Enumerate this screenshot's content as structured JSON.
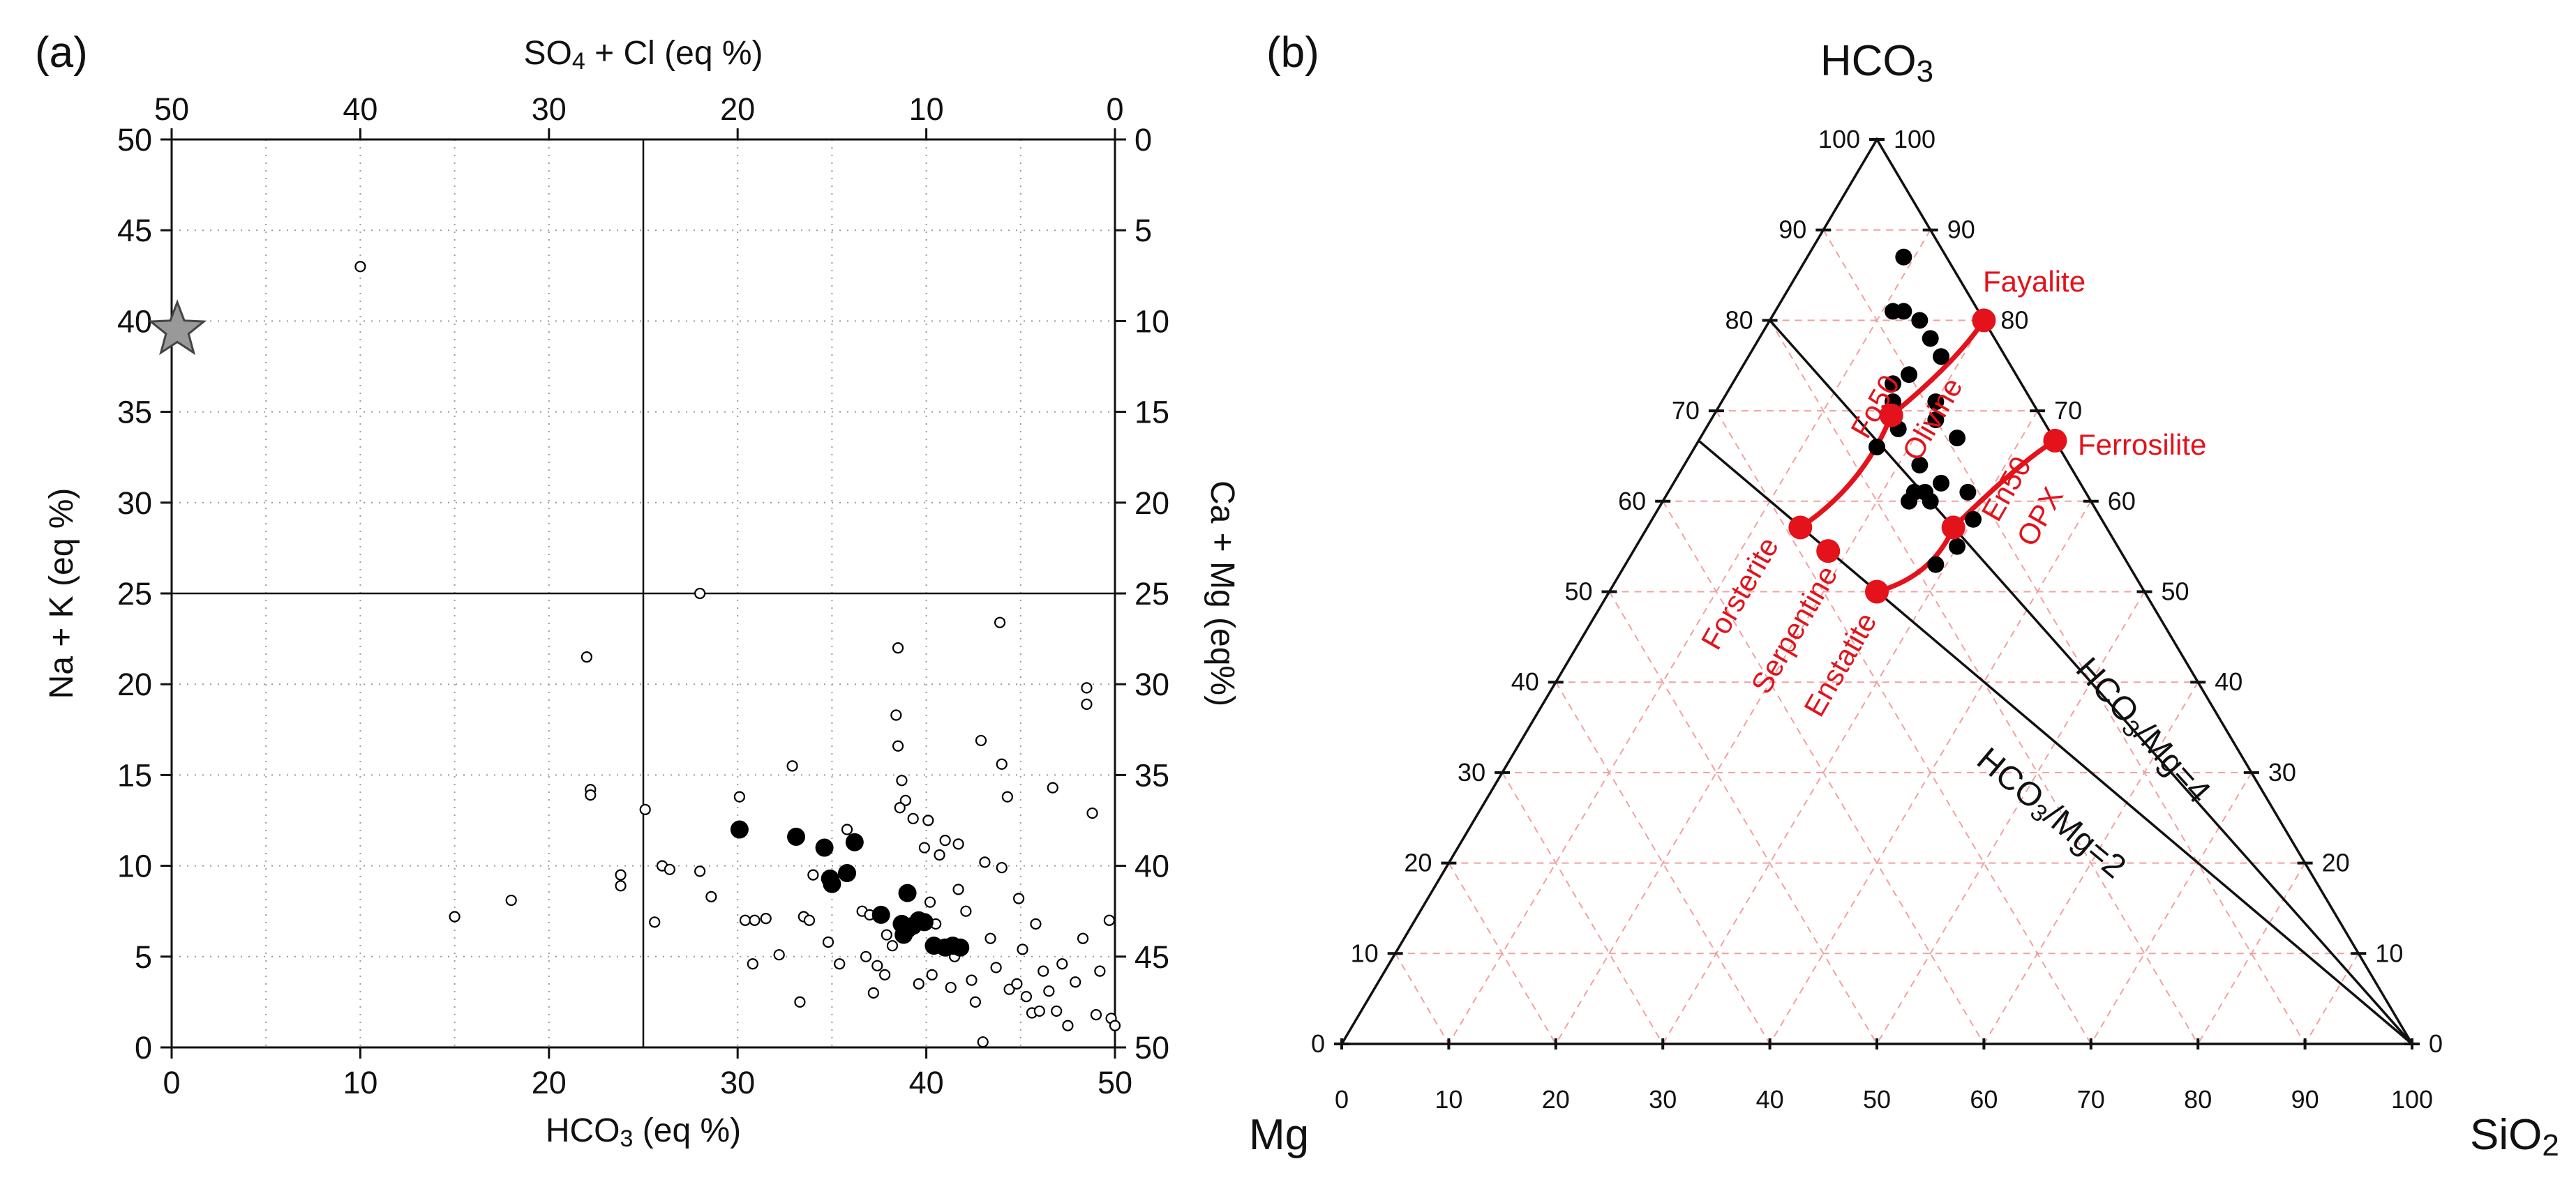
{
  "chart_data": [
    {
      "panel": "(a)",
      "type": "scatter",
      "xlabel": "HCO3 (eq %)",
      "x_axis_text": {
        "main": "HCO",
        "sub": "3",
        "rest": " (eq %)"
      },
      "ylabel": "Na + K (eq %)",
      "top_label": {
        "main": "SO",
        "sub": "4",
        "rest": " + Cl (eq %)"
      },
      "right_label": "Ca + Mg (eq%)",
      "xlim": [
        0,
        50
      ],
      "ylim": [
        0,
        50
      ],
      "x_ticks": [
        "0",
        "10",
        "20",
        "30",
        "40",
        "50"
      ],
      "y_ticks": [
        "0",
        "5",
        "10",
        "15",
        "20",
        "25",
        "30",
        "35",
        "40",
        "45",
        "50"
      ],
      "top_ticks": [
        "50",
        "40",
        "30",
        "20",
        "10",
        "0"
      ],
      "right_ticks": [
        "50",
        "45",
        "40",
        "35",
        "30",
        "25",
        "20",
        "15",
        "10",
        "5",
        "0"
      ],
      "grid": true,
      "dividers": {
        "x": 25,
        "y": 25
      },
      "star": {
        "x": 0.3,
        "y": 39.5,
        "color": "#999999"
      },
      "series": [
        {
          "marker": "filled",
          "color": "#000000",
          "points": [
            [
              30.1,
              12.0
            ],
            [
              33.1,
              11.6
            ],
            [
              34.6,
              11.0
            ],
            [
              36.2,
              11.3
            ],
            [
              35.8,
              9.6
            ],
            [
              34.9,
              9.3
            ],
            [
              35.0,
              9.0
            ],
            [
              37.6,
              7.3
            ],
            [
              38.7,
              6.8
            ],
            [
              39.0,
              6.5
            ],
            [
              39.3,
              6.7
            ],
            [
              39.6,
              7.0
            ],
            [
              39.9,
              6.9
            ],
            [
              38.8,
              6.2
            ],
            [
              39.0,
              8.5
            ],
            [
              40.4,
              5.6
            ],
            [
              41.0,
              5.5
            ],
            [
              41.4,
              5.6
            ],
            [
              41.8,
              5.5
            ]
          ]
        },
        {
          "marker": "open",
          "color": "#000000",
          "points": [
            [
              10.0,
              43.0
            ],
            [
              28.0,
              25.0
            ],
            [
              22.0,
              21.5
            ],
            [
              15.0,
              7.2
            ],
            [
              18.0,
              8.1
            ],
            [
              22.2,
              14.2
            ],
            [
              22.2,
              13.9
            ],
            [
              23.8,
              9.5
            ],
            [
              23.8,
              8.9
            ],
            [
              25.1,
              13.1
            ],
            [
              26.0,
              10.0
            ],
            [
              26.4,
              9.8
            ],
            [
              28.0,
              9.7
            ],
            [
              28.6,
              8.3
            ],
            [
              25.6,
              6.9
            ],
            [
              30.1,
              13.8
            ],
            [
              30.4,
              7.0
            ],
            [
              30.9,
              7.0
            ],
            [
              30.8,
              4.6
            ],
            [
              31.5,
              7.1
            ],
            [
              32.2,
              5.1
            ],
            [
              32.9,
              15.5
            ],
            [
              33.3,
              2.5
            ],
            [
              33.5,
              7.2
            ],
            [
              33.8,
              7.0
            ],
            [
              34.0,
              9.5
            ],
            [
              34.8,
              5.8
            ],
            [
              35.4,
              4.6
            ],
            [
              35.8,
              12.0
            ],
            [
              36.6,
              7.5
            ],
            [
              37.0,
              7.3
            ],
            [
              36.8,
              5.0
            ],
            [
              37.2,
              3.0
            ],
            [
              37.4,
              4.5
            ],
            [
              37.8,
              4.0
            ],
            [
              37.9,
              6.2
            ],
            [
              38.2,
              5.6
            ],
            [
              38.4,
              18.3
            ],
            [
              38.5,
              16.6
            ],
            [
              38.7,
              14.7
            ],
            [
              38.9,
              13.6
            ],
            [
              38.6,
              13.2
            ],
            [
              38.5,
              22.0
            ],
            [
              39.3,
              12.6
            ],
            [
              39.6,
              3.5
            ],
            [
              39.9,
              11.0
            ],
            [
              40.1,
              12.5
            ],
            [
              40.2,
              8.0
            ],
            [
              40.3,
              4.0
            ],
            [
              40.5,
              6.8
            ],
            [
              40.7,
              10.6
            ],
            [
              41.0,
              11.4
            ],
            [
              41.3,
              3.3
            ],
            [
              41.5,
              5.0
            ],
            [
              41.7,
              8.7
            ],
            [
              41.7,
              11.2
            ],
            [
              42.1,
              7.5
            ],
            [
              42.4,
              3.7
            ],
            [
              42.6,
              2.5
            ],
            [
              42.9,
              16.9
            ],
            [
              43.0,
              0.3
            ],
            [
              43.1,
              10.2
            ],
            [
              43.4,
              6.0
            ],
            [
              43.7,
              4.4
            ],
            [
              43.9,
              23.4
            ],
            [
              44.0,
              15.6
            ],
            [
              44.0,
              9.9
            ],
            [
              44.3,
              13.8
            ],
            [
              44.4,
              3.2
            ],
            [
              44.8,
              3.5
            ],
            [
              44.9,
              8.2
            ],
            [
              45.1,
              5.4
            ],
            [
              45.3,
              2.8
            ],
            [
              45.6,
              1.9
            ],
            [
              45.8,
              6.8
            ],
            [
              46.0,
              2.0
            ],
            [
              46.2,
              4.2
            ],
            [
              46.5,
              3.1
            ],
            [
              46.7,
              14.3
            ],
            [
              46.9,
              2.0
            ],
            [
              47.2,
              4.6
            ],
            [
              47.5,
              1.2
            ],
            [
              47.9,
              3.6
            ],
            [
              48.3,
              6.0
            ],
            [
              48.5,
              19.8
            ],
            [
              48.5,
              18.9
            ],
            [
              48.8,
              12.9
            ],
            [
              49.0,
              1.8
            ],
            [
              49.2,
              4.2
            ],
            [
              49.7,
              7.0
            ],
            [
              49.8,
              1.6
            ],
            [
              50.0,
              1.2
            ]
          ]
        }
      ]
    },
    {
      "panel": "(b)",
      "type": "ternary",
      "corners": {
        "top": {
          "main": "HCO",
          "sub": "3"
        },
        "left": "Mg",
        "right": {
          "main": "SiO",
          "sub": "2"
        }
      },
      "left_edge_ticks": [
        "100",
        "90",
        "80",
        "70",
        "60",
        "50",
        "40",
        "30",
        "20",
        "10",
        "0"
      ],
      "right_edge_ticks": [
        "100",
        "90",
        "80",
        "70",
        "60",
        "50",
        "40",
        "30",
        "20",
        "10",
        "0"
      ],
      "bottom_edge_ticks": [
        "0",
        "10",
        "20",
        "30",
        "40",
        "50",
        "60",
        "70",
        "80",
        "90",
        "100"
      ],
      "grid": true,
      "grid_color": "#f2a0a0",
      "accent_color": "#e3121b",
      "ratio_lines": [
        {
          "label": "HCO3/Mg=4",
          "text": {
            "main": "HCO",
            "sub": "3",
            "rest": "/Mg=4"
          },
          "hco3": 80,
          "mg": 20
        },
        {
          "label": "HCO3/Mg=2",
          "text": {
            "main": "HCO",
            "sub": "3",
            "rest": "/Mg=2"
          },
          "hco3": 66.7,
          "mg": 33.3
        }
      ],
      "samples_hco3_mg_sio2": [
        [
          87,
          4,
          9
        ],
        [
          81,
          8,
          11
        ],
        [
          81,
          7,
          12
        ],
        [
          80,
          6,
          14
        ],
        [
          78,
          6,
          16
        ],
        [
          76,
          6,
          18
        ],
        [
          74,
          10,
          16
        ],
        [
          73,
          12,
          15
        ],
        [
          71,
          13,
          16
        ],
        [
          71,
          9,
          20
        ],
        [
          69,
          10,
          21
        ],
        [
          68,
          14,
          18
        ],
        [
          67,
          9,
          24
        ],
        [
          66,
          17,
          17
        ],
        [
          64,
          14,
          22
        ],
        [
          62,
          13,
          25
        ],
        [
          61,
          11,
          28
        ],
        [
          61,
          15,
          24
        ],
        [
          61,
          16,
          23
        ],
        [
          60,
          15,
          25
        ],
        [
          60,
          17,
          23
        ],
        [
          58,
          12,
          30
        ],
        [
          55,
          15,
          30
        ],
        [
          53,
          18,
          29
        ]
      ],
      "minerals": [
        {
          "name": "Fayalite",
          "hco3": 80,
          "mg": 0,
          "sio2": 20
        },
        {
          "name": "Ferrosilite",
          "hco3": 66.7,
          "mg": 0,
          "sio2": 33.3
        },
        {
          "name": "Forsterite",
          "hco3": 57.1,
          "mg": 28.6,
          "sio2": 14.3
        },
        {
          "name": "Serpentine",
          "hco3": 54.5,
          "mg": 27.3,
          "sio2": 18.2
        },
        {
          "name": "Enstatite",
          "hco3": 50,
          "mg": 25,
          "sio2": 25
        },
        {
          "name": "Fo50",
          "hco3": 69.5,
          "mg": 13.9,
          "sio2": 16.6
        },
        {
          "name": "En50",
          "hco3": 57.1,
          "mg": 14.3,
          "sio2": 28.6
        }
      ],
      "mineral_labels": {
        "fo50": "Fo50",
        "olivine": "Olivine",
        "en50": "En50",
        "opx": "OPX",
        "fayalite": "Fayalite",
        "ferrosilite": "Ferrosilite",
        "forsterite": "Forsterite",
        "serpentine": "Serpentine",
        "enstatite": "Enstatite"
      }
    }
  ]
}
